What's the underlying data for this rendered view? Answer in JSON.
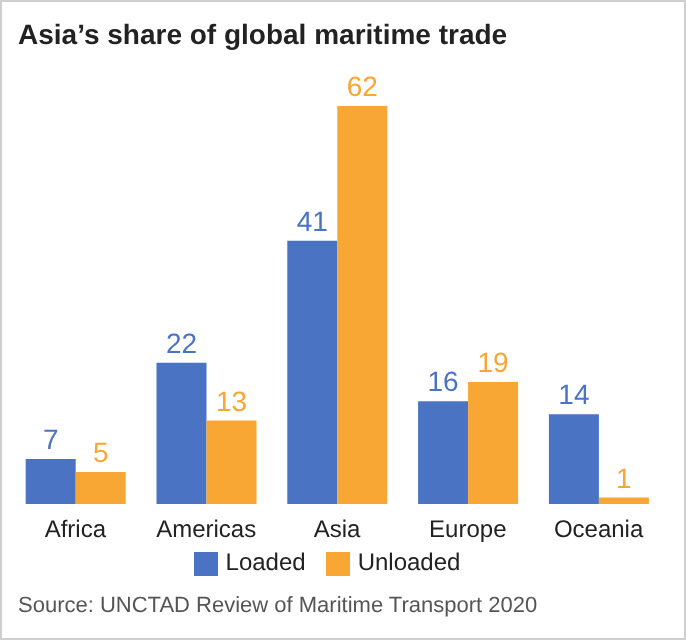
{
  "chart_data": {
    "type": "bar",
    "title": "Asia’s share of global maritime trade",
    "categories": [
      "Africa",
      "Americas",
      "Asia",
      "Europe",
      "Oceania"
    ],
    "series": [
      {
        "name": "Loaded",
        "color": "#4a73c4",
        "values": [
          7,
          22,
          41,
          16,
          14
        ]
      },
      {
        "name": "Unloaded",
        "color": "#f8a634",
        "values": [
          5,
          13,
          62,
          19,
          1
        ]
      }
    ],
    "data_labels": true,
    "legend": "bottom",
    "grid": false,
    "annotations": [
      "Source: UNCTAD Review of Maritime Transport 2020"
    ]
  }
}
